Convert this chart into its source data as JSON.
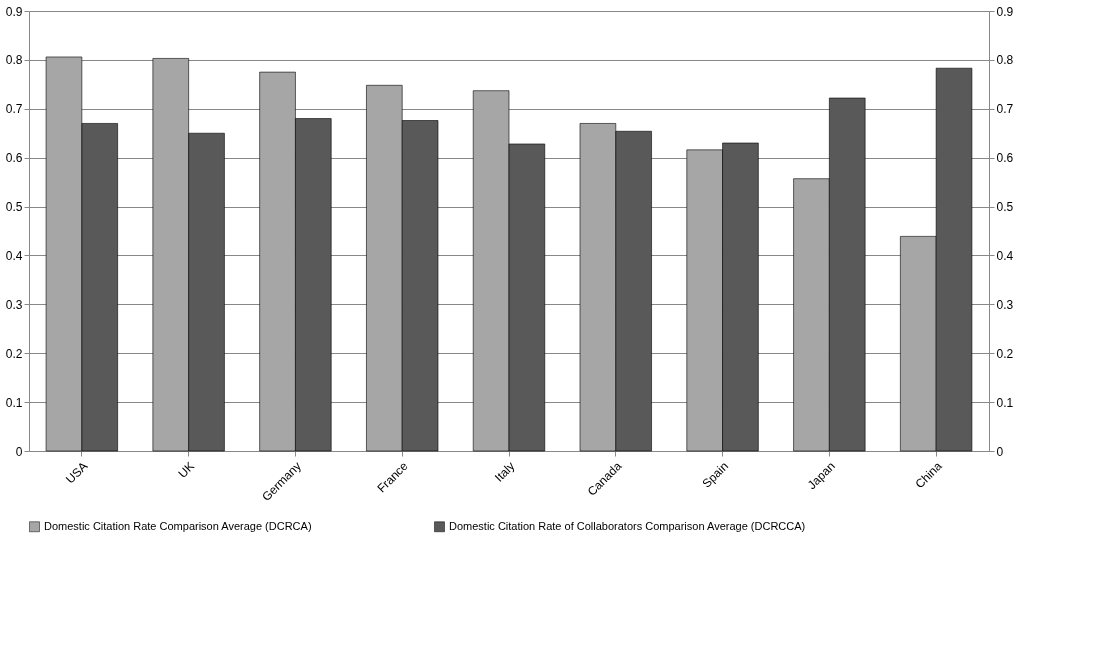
{
  "chart_data": {
    "type": "bar",
    "categories": [
      "USA",
      "UK",
      "Germany",
      "France",
      "Italy",
      "Canada",
      "Spain",
      "Japan",
      "China"
    ],
    "series": [
      {
        "name": "Domestic Citation Rate Comparison Average (DCRCA)",
        "color": "#a6a6a6",
        "values": [
          0.806,
          0.803,
          0.775,
          0.748,
          0.737,
          0.67,
          0.616,
          0.557,
          0.439
        ]
      },
      {
        "name": "Domestic Citation Rate of Collaborators Comparison Average (DCRCCA)",
        "color": "#595959",
        "values": [
          0.67,
          0.65,
          0.68,
          0.676,
          0.628,
          0.654,
          0.63,
          0.722,
          0.783
        ]
      }
    ],
    "ylim": [
      0,
      0.9
    ],
    "yticks": [
      0,
      0.1,
      0.2,
      0.3,
      0.4,
      0.5,
      0.6,
      0.7,
      0.8,
      0.9
    ],
    "y2lim": [
      0,
      0.9
    ],
    "y2ticks": [
      0,
      0.1,
      0.2,
      0.3,
      0.4,
      0.5,
      0.6,
      0.7,
      0.8,
      0.9
    ],
    "grid": "y",
    "legend": "bottom"
  }
}
